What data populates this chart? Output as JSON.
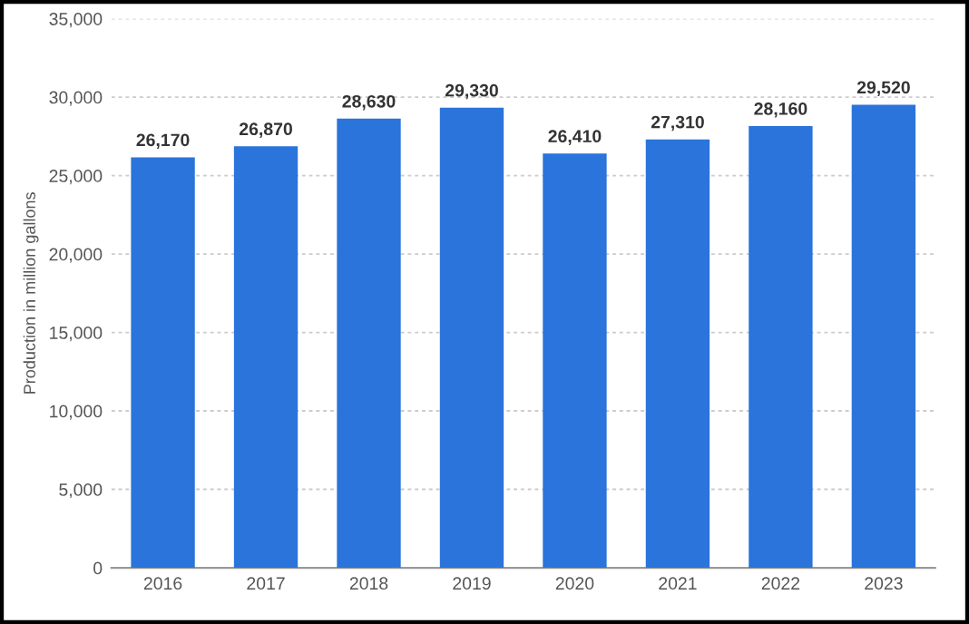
{
  "chart_data": {
    "type": "bar",
    "ylabel": "Production in million gallons",
    "categories": [
      "2016",
      "2017",
      "2018",
      "2019",
      "2020",
      "2021",
      "2022",
      "2023"
    ],
    "values": [
      26170,
      26870,
      28630,
      29330,
      26410,
      27310,
      28160,
      29520
    ],
    "value_labels": [
      "26,170",
      "26,870",
      "28,630",
      "29,330",
      "26,410",
      "27,310",
      "28,160",
      "29,520"
    ],
    "color": "#2a74db",
    "ylim": [
      0,
      35000
    ],
    "yticks": [
      0,
      {
        "value": 5000,
        "label": "5,000"
      },
      {
        "value": 10000,
        "label": "10,000"
      },
      {
        "value": 15000,
        "label": "15,000"
      },
      {
        "value": 20000,
        "label": "20,000"
      },
      {
        "value": 25000,
        "label": "25,000"
      },
      {
        "value": 30000,
        "label": "30,000"
      },
      {
        "value": 35000,
        "label": "35,000"
      }
    ],
    "grid": "y"
  }
}
